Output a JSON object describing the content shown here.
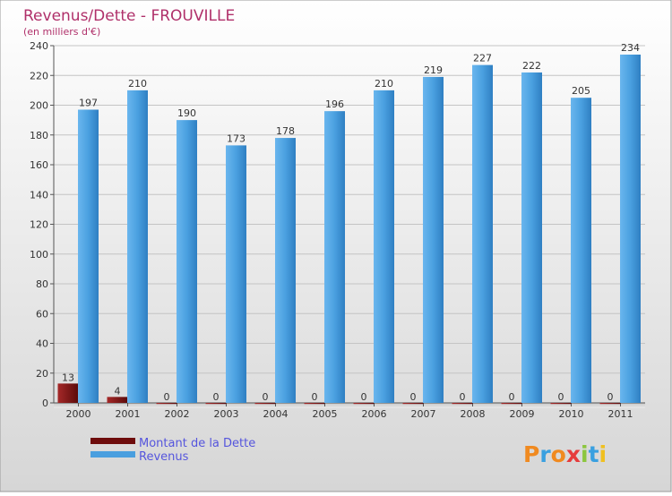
{
  "chart_data": {
    "type": "bar",
    "title": "Revenus/Dette - FROUVILLE",
    "subtitle": "(en milliers d'€)",
    "categories": [
      "2000",
      "2001",
      "2002",
      "2003",
      "2004",
      "2005",
      "2006",
      "2007",
      "2008",
      "2009",
      "2010",
      "2011"
    ],
    "series": [
      {
        "name": "Montant de la Dette",
        "color": "#7a1010",
        "values": [
          13,
          4,
          0,
          0,
          0,
          0,
          0,
          0,
          0,
          0,
          0,
          0
        ]
      },
      {
        "name": "Revenus",
        "color": "#4a9fdf",
        "values": [
          197,
          210,
          190,
          173,
          178,
          196,
          210,
          219,
          227,
          222,
          205,
          234
        ]
      }
    ],
    "ylim": [
      0,
      240
    ],
    "yticks": [
      0,
      20,
      40,
      60,
      80,
      100,
      120,
      140,
      160,
      180,
      200,
      220,
      240
    ],
    "grid": true,
    "legend": "bottom-left",
    "brand": "Proxiti",
    "colors": {
      "title": "#b0306a",
      "legend_text": "#5555dd"
    }
  }
}
